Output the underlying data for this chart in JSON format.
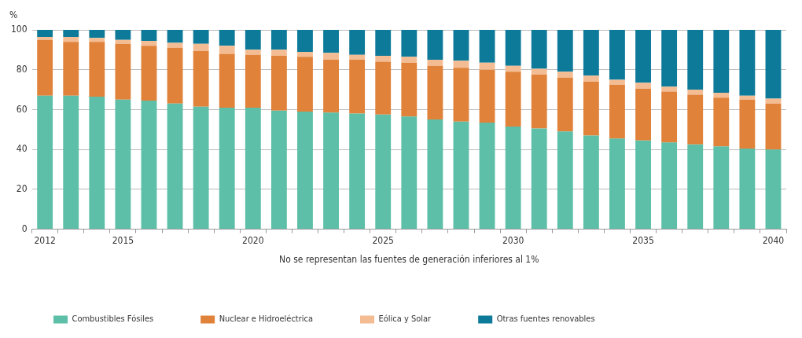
{
  "chart_data": {
    "type": "bar",
    "stacked": true,
    "ylabel": "%",
    "categories": [
      "2012",
      null,
      null,
      "2015",
      null,
      null,
      null,
      null,
      "2020",
      null,
      null,
      null,
      null,
      "2025",
      null,
      null,
      null,
      null,
      "2030",
      null,
      null,
      null,
      null,
      "2035",
      null,
      null,
      null,
      null,
      "2040"
    ],
    "series": [
      {
        "name": "Combustibles Fósiles",
        "color": "#5dbfa8",
        "values": [
          67,
          67,
          66.5,
          65,
          64.5,
          63,
          61.5,
          61,
          61,
          59.5,
          59,
          58.5,
          58,
          57.5,
          56.5,
          55,
          54,
          53.5,
          51.5,
          50.5,
          49,
          47,
          45.5,
          44.5,
          43.5,
          42.5,
          41.5,
          40.5,
          40
        ]
      },
      {
        "name": "Nuclear e Hidroeléctrica",
        "color": "#e0823a",
        "values": [
          28,
          27,
          27.5,
          28,
          27.5,
          28,
          28,
          27,
          26.5,
          27.5,
          27.5,
          26.5,
          27,
          26.5,
          27,
          27,
          27,
          26.5,
          27.5,
          27,
          27,
          27,
          27,
          26,
          25.5,
          25,
          24.5,
          24.5,
          23
        ]
      },
      {
        "name": "Eólica y Solar",
        "color": "#f4bc93",
        "values": [
          1.5,
          2.5,
          2,
          2,
          2.5,
          2.5,
          3.5,
          4,
          2.5,
          3,
          2.5,
          3.5,
          2.5,
          3,
          3,
          3,
          3.5,
          3.5,
          3,
          3,
          3,
          3,
          2.5,
          3,
          2.5,
          2.5,
          2.5,
          2,
          2.5
        ]
      },
      {
        "name": "Otras fuentes renovables",
        "color": "#0e7a99",
        "values": [
          3.5,
          3.5,
          4,
          5,
          5.5,
          6.5,
          7,
          8,
          10,
          10,
          11,
          11.5,
          12.5,
          13,
          13.5,
          15,
          15.5,
          16.5,
          18,
          19.5,
          21,
          23,
          25,
          26.5,
          28.5,
          30,
          31.5,
          33,
          34.5
        ]
      }
    ],
    "ylim": [
      0,
      100
    ],
    "yticks": [
      0,
      20,
      40,
      60,
      80,
      100
    ],
    "grid": "y",
    "legend": "bottom",
    "annotations": [
      "No se representan las fuentes de generación inferiores al 1%"
    ]
  }
}
